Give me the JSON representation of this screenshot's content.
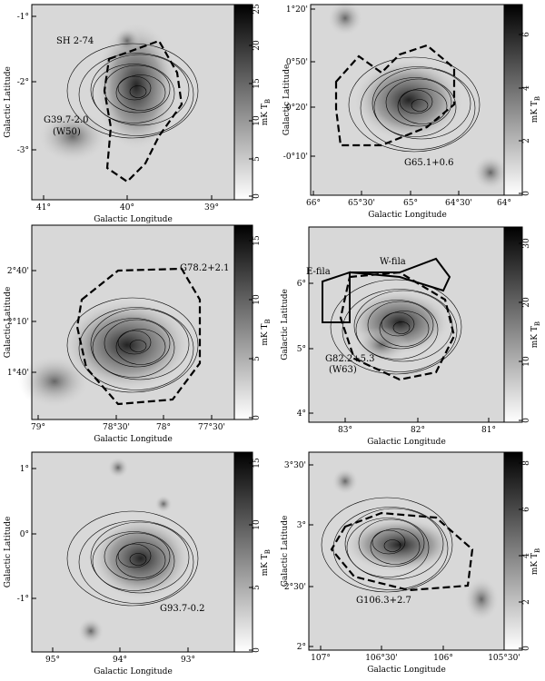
{
  "axis_labels": {
    "x": "Galactic Longitude",
    "y": "Galactic Latitude"
  },
  "colorbar_label": {
    "main": "mK T",
    "sub": "B"
  },
  "panels": [
    {
      "labels": [
        "SH 2-74",
        "G39.7-2.0",
        "(W50)"
      ],
      "xticks": [
        "41°",
        "40°",
        "39°"
      ],
      "yticks": [
        "-1°",
        "-2°",
        "-3°"
      ],
      "cbar_ticks": [
        "0",
        "5",
        "10",
        "15",
        "20",
        "25"
      ]
    },
    {
      "labels": [
        "G65.1+0.6"
      ],
      "xticks": [
        "66°",
        "65°30'",
        "65°",
        "64°30'",
        "64°"
      ],
      "yticks": [
        "1°20'",
        "0°50'",
        "0°20'",
        "-0°10'"
      ],
      "cbar_ticks": [
        "0",
        "2",
        "4",
        "6"
      ]
    },
    {
      "labels": [
        "G78.2+2.1"
      ],
      "xticks": [
        "79°",
        "78°30'",
        "78°",
        "77°30'"
      ],
      "yticks": [
        "2°40'",
        "2°10'",
        "1°40'"
      ],
      "cbar_ticks": [
        "0",
        "5",
        "10",
        "15"
      ]
    },
    {
      "labels": [
        "G82.2+5.3",
        "(W63)",
        "E-fila",
        "W-fila"
      ],
      "xticks": [
        "83°",
        "82°",
        "81°"
      ],
      "yticks": [
        "6°",
        "5°",
        "4°"
      ],
      "cbar_ticks": [
        "0",
        "10",
        "20",
        "30"
      ]
    },
    {
      "labels": [
        "G93.7-0.2"
      ],
      "xticks": [
        "95°",
        "94°",
        "93°"
      ],
      "yticks": [
        "1°",
        "0°",
        "-1°"
      ],
      "cbar_ticks": [
        "0",
        "5",
        "10",
        "15"
      ]
    },
    {
      "labels": [
        "G106.3+2.7"
      ],
      "xticks": [
        "107°",
        "106°30'",
        "106°",
        "105°30'"
      ],
      "yticks": [
        "3°30'",
        "3°",
        "2°30'",
        "2°"
      ],
      "cbar_ticks": [
        "0",
        "2",
        "4",
        "6",
        "8"
      ]
    }
  ]
}
